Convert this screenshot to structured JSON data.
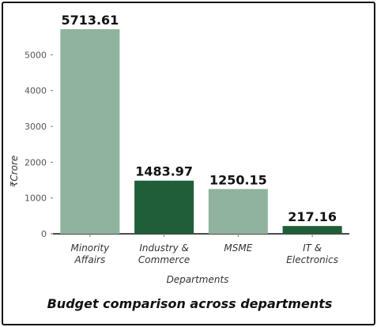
{
  "chart_data": {
    "type": "bar",
    "title": "Budget comparison across departments",
    "xlabel": "Departments",
    "ylabel": "₹Crore",
    "categories": [
      [
        "Minority",
        "Affairs"
      ],
      [
        "Industry &",
        "Commerce"
      ],
      [
        "MSME"
      ],
      [
        "IT &",
        "Electronics"
      ]
    ],
    "values": [
      5713.61,
      1483.97,
      1250.15,
      217.16
    ],
    "value_labels": [
      "5713.61",
      "1483.97",
      "1250.15",
      "217.16"
    ],
    "bar_colors": [
      "#8fb39c",
      "#1f5e38",
      "#8fb39c",
      "#1f5e38"
    ],
    "yticks": [
      0,
      1000,
      2000,
      3000,
      4000,
      5000
    ],
    "ylim": [
      0,
      5713.61
    ],
    "grid": false,
    "legend": "none"
  }
}
